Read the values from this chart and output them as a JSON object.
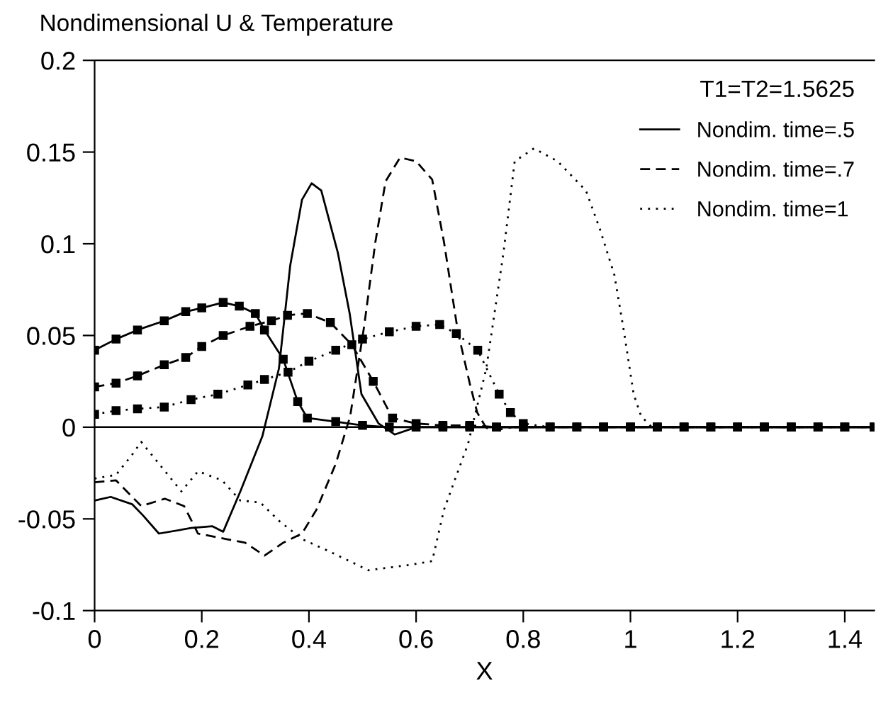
{
  "chart_data": {
    "type": "line",
    "title": "Nondimensional U & Temperature",
    "xlabel": "X",
    "legend_title": "T1=T2=1.5625",
    "legend": "top right",
    "grid": false,
    "xlim": [
      0,
      1.455
    ],
    "xticks": [
      0,
      0.2,
      0.4,
      0.6,
      0.8,
      1,
      1.2,
      1.4
    ],
    "ylim": [
      -0.1,
      0.2
    ],
    "yticks": [
      -0.1,
      -0.05,
      0,
      0.05,
      0.1,
      0.15,
      0.2
    ],
    "ref_lines": [
      {
        "axis": "y",
        "value": 0,
        "color": "#000000",
        "line_style": "solid"
      }
    ],
    "series": [
      {
        "name": "Nondim. time=.5",
        "color": "#000000",
        "line_style": "solid",
        "marker": "none",
        "x": [
          0,
          0.03,
          0.07,
          0.09,
          0.12,
          0.18,
          0.22,
          0.24,
          0.272,
          0.313,
          0.344,
          0.365,
          0.387,
          0.405,
          0.423,
          0.454,
          0.476,
          0.498,
          0.53,
          0.56,
          0.6,
          0.8,
          1.0,
          1.2,
          1.455
        ],
        "values": [
          -0.04,
          -0.038,
          -0.042,
          -0.048,
          -0.058,
          -0.055,
          -0.054,
          -0.057,
          -0.035,
          -0.005,
          0.032,
          0.088,
          0.124,
          0.133,
          0.129,
          0.095,
          0.062,
          0.018,
          0.002,
          -0.004,
          0,
          0,
          0,
          0,
          0
        ]
      },
      {
        "name": "Nondim. time=.7",
        "color": "#000000",
        "line_style": "dashed",
        "marker": "none",
        "x": [
          0,
          0.04,
          0.087,
          0.131,
          0.167,
          0.193,
          0.246,
          0.281,
          0.317,
          0.352,
          0.387,
          0.414,
          0.45,
          0.477,
          0.503,
          0.524,
          0.543,
          0.57,
          0.6,
          0.63,
          0.652,
          0.678,
          0.7,
          0.714,
          0.73,
          0.74,
          0.78,
          1.0,
          1.2,
          1.455
        ],
        "values": [
          -0.03,
          -0.029,
          -0.043,
          -0.039,
          -0.043,
          -0.058,
          -0.061,
          -0.063,
          -0.07,
          -0.063,
          -0.058,
          -0.045,
          -0.02,
          0.006,
          0.055,
          0.101,
          0.134,
          0.147,
          0.145,
          0.135,
          0.101,
          0.052,
          0.024,
          0.008,
          0.0,
          -0.002,
          0,
          0,
          0,
          0
        ]
      },
      {
        "name": "Nondim. time=1",
        "color": "#000000",
        "line_style": "dotted",
        "marker": "none",
        "x": [
          0,
          0.04,
          0.07,
          0.087,
          0.162,
          0.193,
          0.238,
          0.272,
          0.309,
          0.344,
          0.387,
          0.44,
          0.511,
          0.59,
          0.63,
          0.652,
          0.697,
          0.731,
          0.763,
          0.784,
          0.82,
          0.864,
          0.917,
          0.943,
          0.97,
          0.988,
          1.006,
          1.02,
          1.04,
          1.2,
          1.455
        ],
        "values": [
          -0.028,
          -0.026,
          -0.015,
          -0.008,
          -0.035,
          -0.024,
          -0.029,
          -0.04,
          -0.041,
          -0.051,
          -0.061,
          -0.068,
          -0.078,
          -0.075,
          -0.073,
          -0.045,
          -0.009,
          0.032,
          0.095,
          0.145,
          0.152,
          0.145,
          0.129,
          0.108,
          0.083,
          0.052,
          0.018,
          0.006,
          0,
          0,
          0
        ]
      },
      {
        "color": "#000000",
        "line_style": "solid",
        "marker": "square",
        "x": [
          0,
          0.04,
          0.08,
          0.13,
          0.17,
          0.2,
          0.24,
          0.27,
          0.3,
          0.317,
          0.352,
          0.379,
          0.397,
          0.45,
          0.5,
          0.55,
          0.6,
          0.65,
          0.7,
          0.75,
          0.8,
          0.85,
          0.9,
          0.95,
          1.0,
          1.05,
          1.1,
          1.15,
          1.2,
          1.25,
          1.3,
          1.35,
          1.4,
          1.455
        ],
        "values": [
          0.042,
          0.048,
          0.053,
          0.058,
          0.063,
          0.065,
          0.068,
          0.066,
          0.062,
          0.053,
          0.037,
          0.014,
          0.005,
          0.003,
          0.001,
          0,
          0,
          0,
          0,
          0,
          0,
          0,
          0,
          0,
          0,
          0,
          0,
          0,
          0,
          0,
          0,
          0,
          0,
          0
        ]
      },
      {
        "color": "#000000",
        "line_style": "dashed",
        "marker": "square",
        "x": [
          0,
          0.04,
          0.08,
          0.13,
          0.17,
          0.2,
          0.24,
          0.29,
          0.33,
          0.36,
          0.397,
          0.44,
          0.48,
          0.52,
          0.556,
          0.6,
          0.65,
          0.7,
          0.75,
          0.8,
          0.85,
          0.9,
          0.95,
          1.0,
          1.05,
          1.1,
          1.15,
          1.2,
          1.25,
          1.3,
          1.35,
          1.4,
          1.455
        ],
        "values": [
          0.022,
          0.024,
          0.028,
          0.034,
          0.038,
          0.044,
          0.05,
          0.055,
          0.058,
          0.061,
          0.062,
          0.057,
          0.045,
          0.025,
          0.005,
          0.002,
          0.001,
          0.001,
          0,
          0,
          0,
          0,
          0,
          0,
          0,
          0,
          0,
          0,
          0,
          0,
          0,
          0,
          0
        ]
      },
      {
        "color": "#000000",
        "line_style": "dotted",
        "marker": "square",
        "x": [
          0,
          0.04,
          0.08,
          0.13,
          0.18,
          0.23,
          0.286,
          0.317,
          0.361,
          0.4,
          0.45,
          0.5,
          0.55,
          0.6,
          0.644,
          0.675,
          0.715,
          0.755,
          0.776,
          0.8,
          0.85,
          0.9,
          0.95,
          1.0,
          1.05,
          1.1,
          1.15,
          1.2,
          1.25,
          1.3,
          1.35,
          1.4,
          1.455
        ],
        "values": [
          0.007,
          0.009,
          0.01,
          0.011,
          0.015,
          0.018,
          0.023,
          0.026,
          0.03,
          0.036,
          0.042,
          0.048,
          0.052,
          0.055,
          0.056,
          0.051,
          0.042,
          0.018,
          0.008,
          0.002,
          0,
          0,
          0,
          0,
          0,
          0,
          0,
          0,
          0,
          0,
          0,
          0,
          0
        ]
      }
    ]
  }
}
